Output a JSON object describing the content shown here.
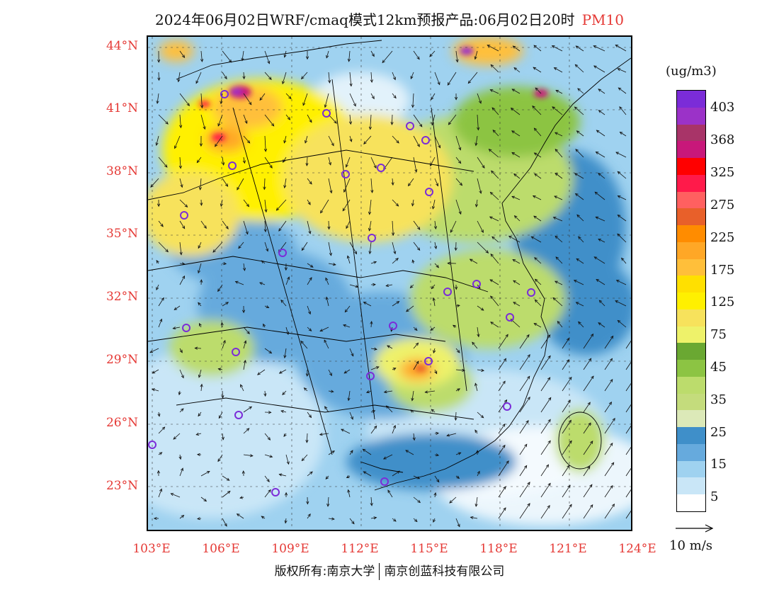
{
  "title": {
    "main": "2024年06月02日WRF/cmaq模式12km预报产品:06月02日20时",
    "species": "PM10"
  },
  "map": {
    "lat_labels": [
      "44°N",
      "41°N",
      "38°N",
      "35°N",
      "32°N",
      "29°N",
      "26°N",
      "23°N"
    ],
    "lon_labels": [
      "103°E",
      "106°E",
      "109°E",
      "112°E",
      "115°E",
      "118°E",
      "121°E",
      "124°E"
    ]
  },
  "colorbar": {
    "unit": "(ug/m3)",
    "labels": [
      "403",
      "368",
      "325",
      "275",
      "225",
      "175",
      "125",
      "75",
      "45",
      "35",
      "25",
      "15",
      "5"
    ],
    "colors": [
      "#7b2cd8",
      "#9b32c8",
      "#a83468",
      "#c8187a",
      "#ff0000",
      "#ff1a4a",
      "#ff6060",
      "#e8602a",
      "#ff8c00",
      "#ffa726",
      "#ffbf3a",
      "#ffe000",
      "#fff000",
      "#f7e25c",
      "#eef26a",
      "#6aa832",
      "#8cc443",
      "#bcdc6c",
      "#c4dc7c",
      "#dce9b8",
      "#3f8fc9",
      "#66aadd",
      "#9fd2f0",
      "#c9e6f7",
      "#ffffff"
    ],
    "reference_vector": "10 m/s"
  },
  "footer": {
    "left": "版权所有:南京大学",
    "right": "南京创蓝科技有限公司"
  }
}
